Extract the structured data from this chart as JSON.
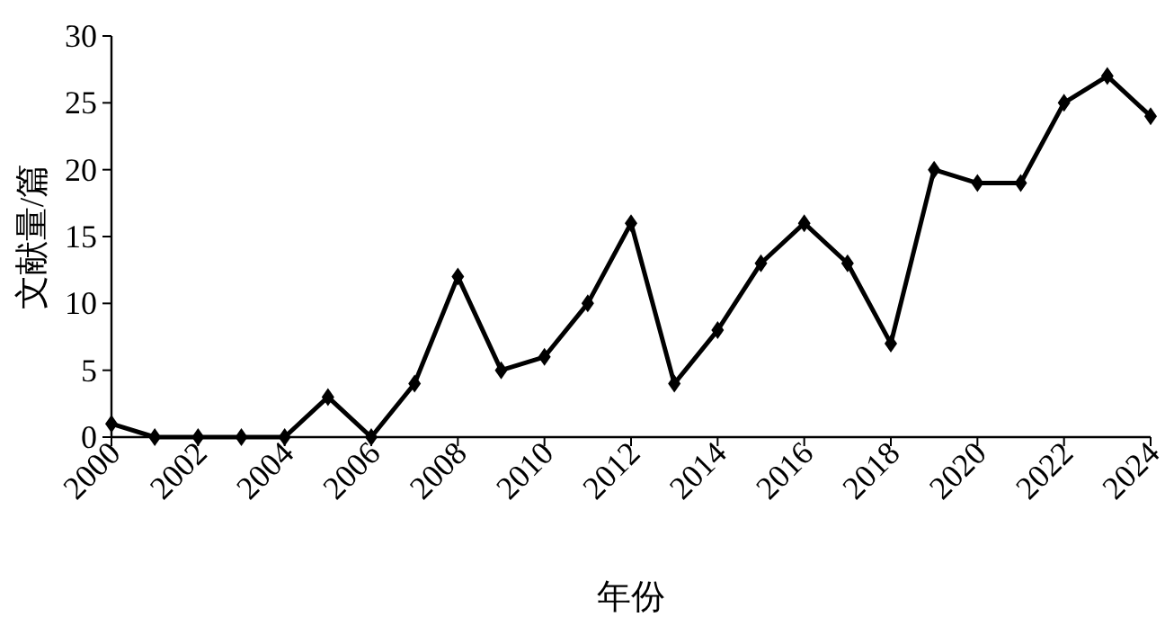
{
  "chart_data": {
    "type": "line",
    "xlabel": "年份",
    "ylabel": "文献量/篇",
    "x": [
      2000,
      2001,
      2002,
      2003,
      2004,
      2005,
      2006,
      2007,
      2008,
      2009,
      2010,
      2011,
      2012,
      2013,
      2014,
      2015,
      2016,
      2017,
      2018,
      2019,
      2020,
      2021,
      2022,
      2023,
      2024
    ],
    "series": [
      {
        "color": "#000000",
        "values": [
          1,
          0,
          0,
          0,
          0,
          3,
          0,
          4,
          12,
          5,
          6,
          10,
          16,
          4,
          8,
          13,
          16,
          13,
          7,
          20,
          19,
          19,
          25,
          27,
          24
        ]
      }
    ],
    "xlim": [
      2000,
      2024
    ],
    "xticks": [
      2000,
      2002,
      2004,
      2006,
      2008,
      2010,
      2012,
      2014,
      2016,
      2018,
      2020,
      2022,
      2024
    ],
    "ylim": [
      0,
      30
    ],
    "yticks": [
      0,
      5,
      10,
      15,
      20,
      25,
      30
    ],
    "marker": "diamond",
    "line_style": "solid",
    "grid": false
  }
}
